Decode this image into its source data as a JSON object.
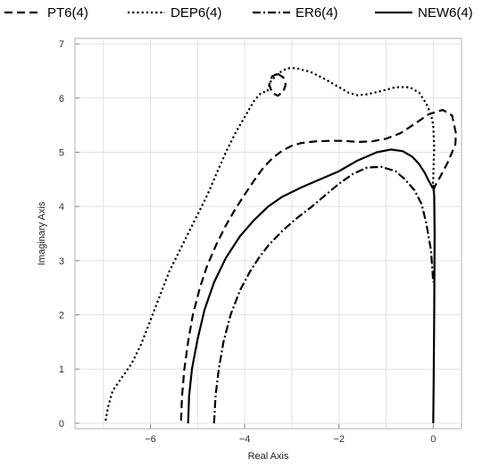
{
  "chart_data": {
    "type": "line",
    "title": "",
    "xlabel": "Real Axis",
    "ylabel": "Imaginary Axis",
    "xlim": [
      -7.6,
      0.6
    ],
    "ylim": [
      -0.1,
      7.1
    ],
    "xticks": [
      -6,
      -4,
      -2,
      0
    ],
    "yticks": [
      0,
      1,
      2,
      3,
      4,
      5,
      6,
      7
    ],
    "grid": true,
    "legend_position": "top",
    "series": [
      {
        "name": "PT6(4)",
        "dash": "long-dash",
        "x": [
          -5.35,
          -5.33,
          -5.28,
          -5.2,
          -5.1,
          -4.95,
          -4.8,
          -4.6,
          -4.4,
          -4.2,
          -4.0,
          -3.8,
          -3.6,
          -3.4,
          -3.2,
          -3.0,
          -2.8,
          -2.5,
          -2.2,
          -1.9,
          -1.6,
          -1.3,
          -1.0,
          -0.7,
          -0.4,
          -0.1,
          0.2,
          0.4,
          0.48,
          0.47,
          0.4,
          0.3,
          0.15,
          0.05,
          0.0
        ],
        "y": [
          0.05,
          0.5,
          1.0,
          1.5,
          2.0,
          2.5,
          2.9,
          3.3,
          3.65,
          3.95,
          4.22,
          4.48,
          4.72,
          4.9,
          5.03,
          5.12,
          5.17,
          5.2,
          5.21,
          5.21,
          5.19,
          5.2,
          5.25,
          5.35,
          5.52,
          5.7,
          5.78,
          5.68,
          5.35,
          5.15,
          5.0,
          4.8,
          4.55,
          4.4,
          4.3
        ]
      },
      {
        "name": "DEP6(4)",
        "dash": "dotted",
        "x": [
          -6.95,
          -6.9,
          -6.8,
          -6.6,
          -6.4,
          -6.2,
          -6.0,
          -5.8,
          -5.6,
          -5.4,
          -5.2,
          -5.0,
          -4.8,
          -4.6,
          -4.4,
          -4.2,
          -4.0,
          -3.8,
          -3.65,
          -3.52,
          -3.45,
          -3.3,
          -3.1,
          -2.9,
          -2.6,
          -2.3,
          -2.0,
          -1.8,
          -1.6,
          -1.4,
          -1.1,
          -0.8,
          -0.5,
          -0.3,
          -0.15,
          -0.05,
          0.0,
          0.02,
          0.01,
          0.0,
          -0.02
        ],
        "y": [
          0.05,
          0.3,
          0.6,
          0.85,
          1.1,
          1.45,
          1.9,
          2.35,
          2.8,
          3.15,
          3.5,
          3.85,
          4.2,
          4.6,
          5.0,
          5.35,
          5.65,
          5.95,
          6.1,
          6.12,
          6.3,
          6.45,
          6.55,
          6.55,
          6.48,
          6.35,
          6.2,
          6.1,
          6.05,
          6.07,
          6.13,
          6.2,
          6.2,
          6.1,
          5.9,
          5.7,
          5.5,
          5.1,
          4.8,
          4.5,
          4.3
        ]
      },
      {
        "name": "PT6(4) loop",
        "dash": "long-dash",
        "x": [
          -3.3,
          -3.18,
          -3.13,
          -3.18,
          -3.3,
          -3.42,
          -3.48,
          -3.42,
          -3.3
        ],
        "y": [
          6.45,
          6.38,
          6.25,
          6.12,
          6.04,
          6.1,
          6.25,
          6.4,
          6.45
        ]
      },
      {
        "name": "ER6(4)",
        "dash": "dash-dot",
        "x": [
          -4.65,
          -4.62,
          -4.55,
          -4.45,
          -4.3,
          -4.1,
          -3.9,
          -3.7,
          -3.5,
          -3.2,
          -2.9,
          -2.6,
          -2.3,
          -2.0,
          -1.7,
          -1.4,
          -1.1,
          -0.8,
          -0.6,
          -0.4,
          -0.25,
          -0.15,
          -0.05,
          0.0
        ],
        "y": [
          0.0,
          0.5,
          1.0,
          1.5,
          2.0,
          2.45,
          2.78,
          3.05,
          3.28,
          3.55,
          3.78,
          3.98,
          4.2,
          4.42,
          4.6,
          4.72,
          4.73,
          4.65,
          4.5,
          4.3,
          4.05,
          3.7,
          3.2,
          2.6
        ]
      },
      {
        "name": "NEW6(4)",
        "dash": "solid",
        "x": [
          -5.2,
          -5.18,
          -5.12,
          -5.0,
          -4.85,
          -4.65,
          -4.4,
          -4.1,
          -3.8,
          -3.5,
          -3.2,
          -2.8,
          -2.4,
          -2.0,
          -1.6,
          -1.2,
          -0.9,
          -0.65,
          -0.45,
          -0.3,
          -0.18,
          -0.1,
          -0.05,
          -0.02,
          0.0,
          0.02,
          0.03,
          0.02,
          0.01,
          0.0
        ],
        "y": [
          0.0,
          0.5,
          1.0,
          1.55,
          2.1,
          2.6,
          3.05,
          3.45,
          3.75,
          4.0,
          4.18,
          4.35,
          4.5,
          4.65,
          4.85,
          5.0,
          5.05,
          5.02,
          4.92,
          4.78,
          4.62,
          4.48,
          4.4,
          4.35,
          4.38,
          4.2,
          3.5,
          2.0,
          0.8,
          0.0
        ]
      }
    ],
    "legend": [
      "PT6(4)",
      "DEP6(4)",
      "ER6(4)",
      "NEW6(4)"
    ]
  }
}
